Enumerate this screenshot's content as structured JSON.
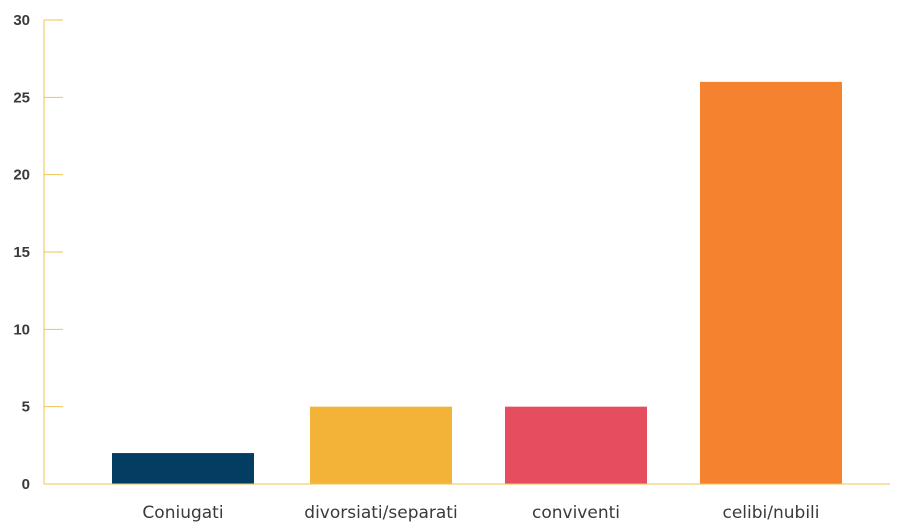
{
  "chart_data": {
    "type": "bar",
    "title": "",
    "xlabel": "",
    "ylabel": "",
    "categories": [
      "Coniugati",
      "divorsiati/separati",
      "conviventi",
      "celibi/nubili"
    ],
    "values": [
      2,
      5,
      5,
      26
    ],
    "colors": [
      "#033e62",
      "#f2b338",
      "#e64e5f",
      "#f5822f"
    ],
    "ylim": [
      0,
      30
    ],
    "yticks": [
      "0",
      "5",
      "10",
      "15",
      "20",
      "25",
      "30"
    ],
    "axis_color": "#f2c34e",
    "grid": false,
    "legend": "none"
  }
}
